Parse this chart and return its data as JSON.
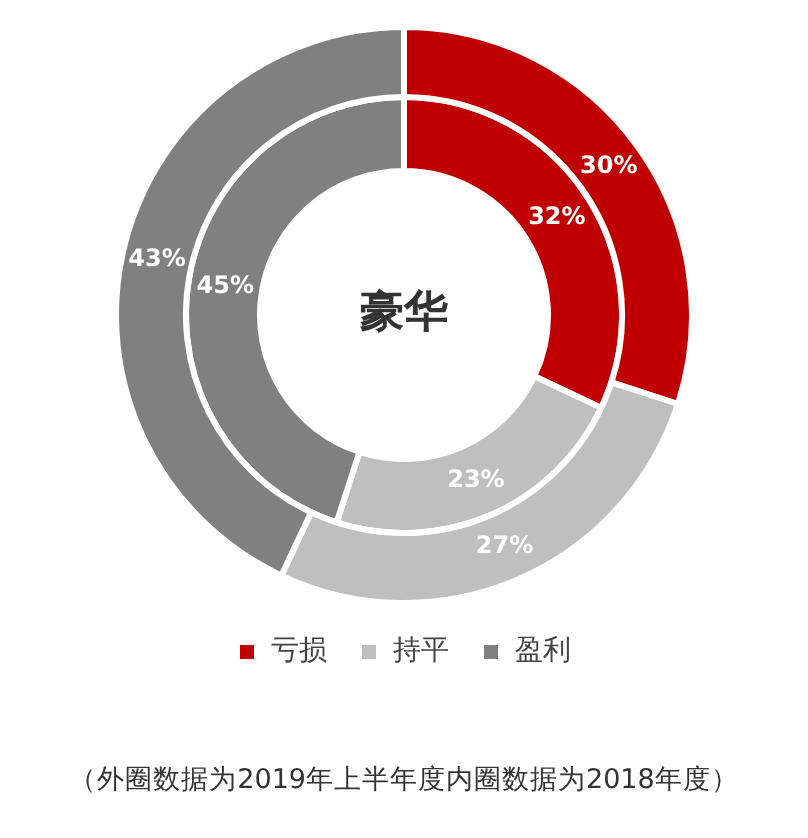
{
  "chart_data": {
    "type": "donut",
    "title": "豪华",
    "categories": [
      "亏损",
      "持平",
      "盈利"
    ],
    "colors": [
      "#c00000",
      "#bfbfbf",
      "#808080"
    ],
    "series": [
      {
        "values": [
          30,
          27,
          43
        ],
        "value_labels": [
          "30%",
          "27%",
          "43%"
        ]
      },
      {
        "values": [
          32,
          23,
          45
        ],
        "value_labels": [
          "32%",
          "23%",
          "45%"
        ]
      }
    ],
    "legend": "bottom",
    "annotations": [
      "（外圈数据为2019年上半年度内圈数据为2018年度）"
    ]
  }
}
